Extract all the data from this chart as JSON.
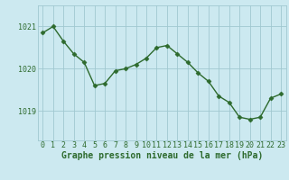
{
  "x": [
    0,
    1,
    2,
    3,
    4,
    5,
    6,
    7,
    8,
    9,
    10,
    11,
    12,
    13,
    14,
    15,
    16,
    17,
    18,
    19,
    20,
    21,
    22,
    23
  ],
  "y": [
    1020.85,
    1021.0,
    1020.65,
    1020.35,
    1020.15,
    1019.6,
    1019.65,
    1019.95,
    1020.0,
    1020.1,
    1020.25,
    1020.5,
    1020.55,
    1020.35,
    1020.15,
    1019.9,
    1019.7,
    1019.35,
    1019.2,
    1018.85,
    1018.8,
    1018.85,
    1019.3,
    1019.4
  ],
  "line_color": "#2d6a2d",
  "marker": "D",
  "markersize": 2.5,
  "linewidth": 1.0,
  "bg_color": "#cce9f0",
  "grid_color": "#a0c8d0",
  "xlabel": "Graphe pression niveau de la mer (hPa)",
  "xlabel_fontsize": 7,
  "yticks": [
    1019,
    1020,
    1021
  ],
  "ylim": [
    1018.3,
    1021.5
  ],
  "xlim": [
    -0.5,
    23.5
  ],
  "tick_color": "#2d6a2d",
  "tick_fontsize": 6,
  "title_color": "#2d6a2d"
}
